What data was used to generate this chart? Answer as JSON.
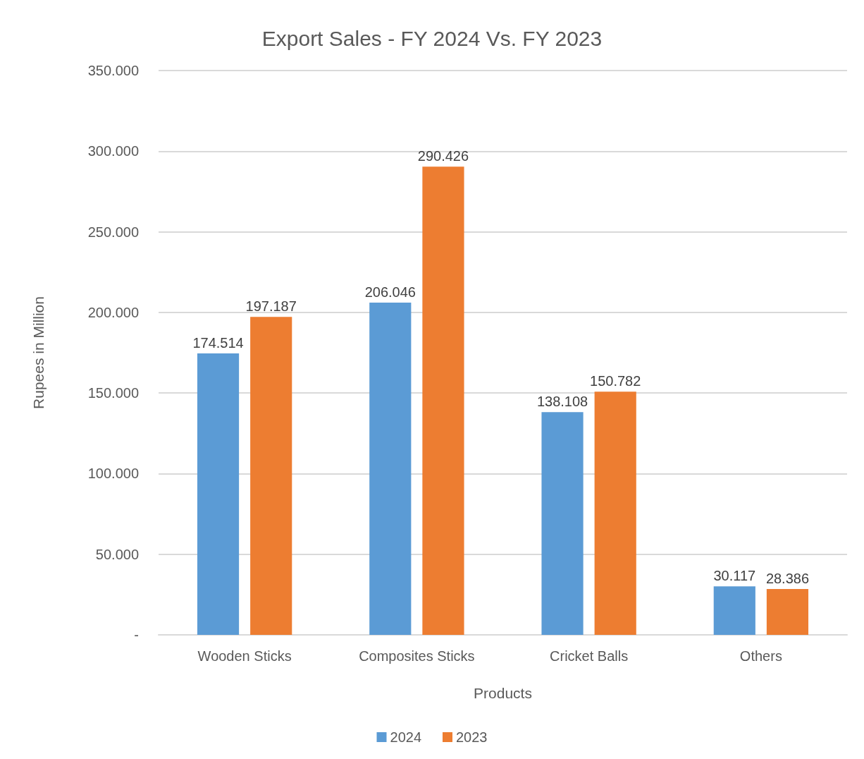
{
  "chart_data": {
    "type": "bar",
    "title": "Export Sales - FY 2024 Vs. FY 2023",
    "xlabel": "Products",
    "ylabel": "Rupees in Million",
    "categories": [
      "Wooden Sticks",
      "Composites Sticks",
      "Cricket Balls",
      "Others"
    ],
    "series": [
      {
        "name": "2024",
        "color": "#5b9bd5",
        "values": [
          174.514,
          206.046,
          138.108,
          30.117
        ]
      },
      {
        "name": "2023",
        "color": "#ed7d31",
        "values": [
          197.187,
          290.426,
          150.782,
          28.386
        ]
      }
    ],
    "ylim": [
      0,
      350
    ],
    "yticks": [
      {
        "value": 0,
        "label": "-"
      },
      {
        "value": 50,
        "label": "50.000"
      },
      {
        "value": 100,
        "label": "100.000"
      },
      {
        "value": 150,
        "label": "150.000"
      },
      {
        "value": 200,
        "label": "200.000"
      },
      {
        "value": 250,
        "label": "250.000"
      },
      {
        "value": 300,
        "label": "300.000"
      },
      {
        "value": 350,
        "label": "350.000"
      }
    ],
    "grid": "y",
    "legend": "bottom",
    "data_labels": true
  }
}
